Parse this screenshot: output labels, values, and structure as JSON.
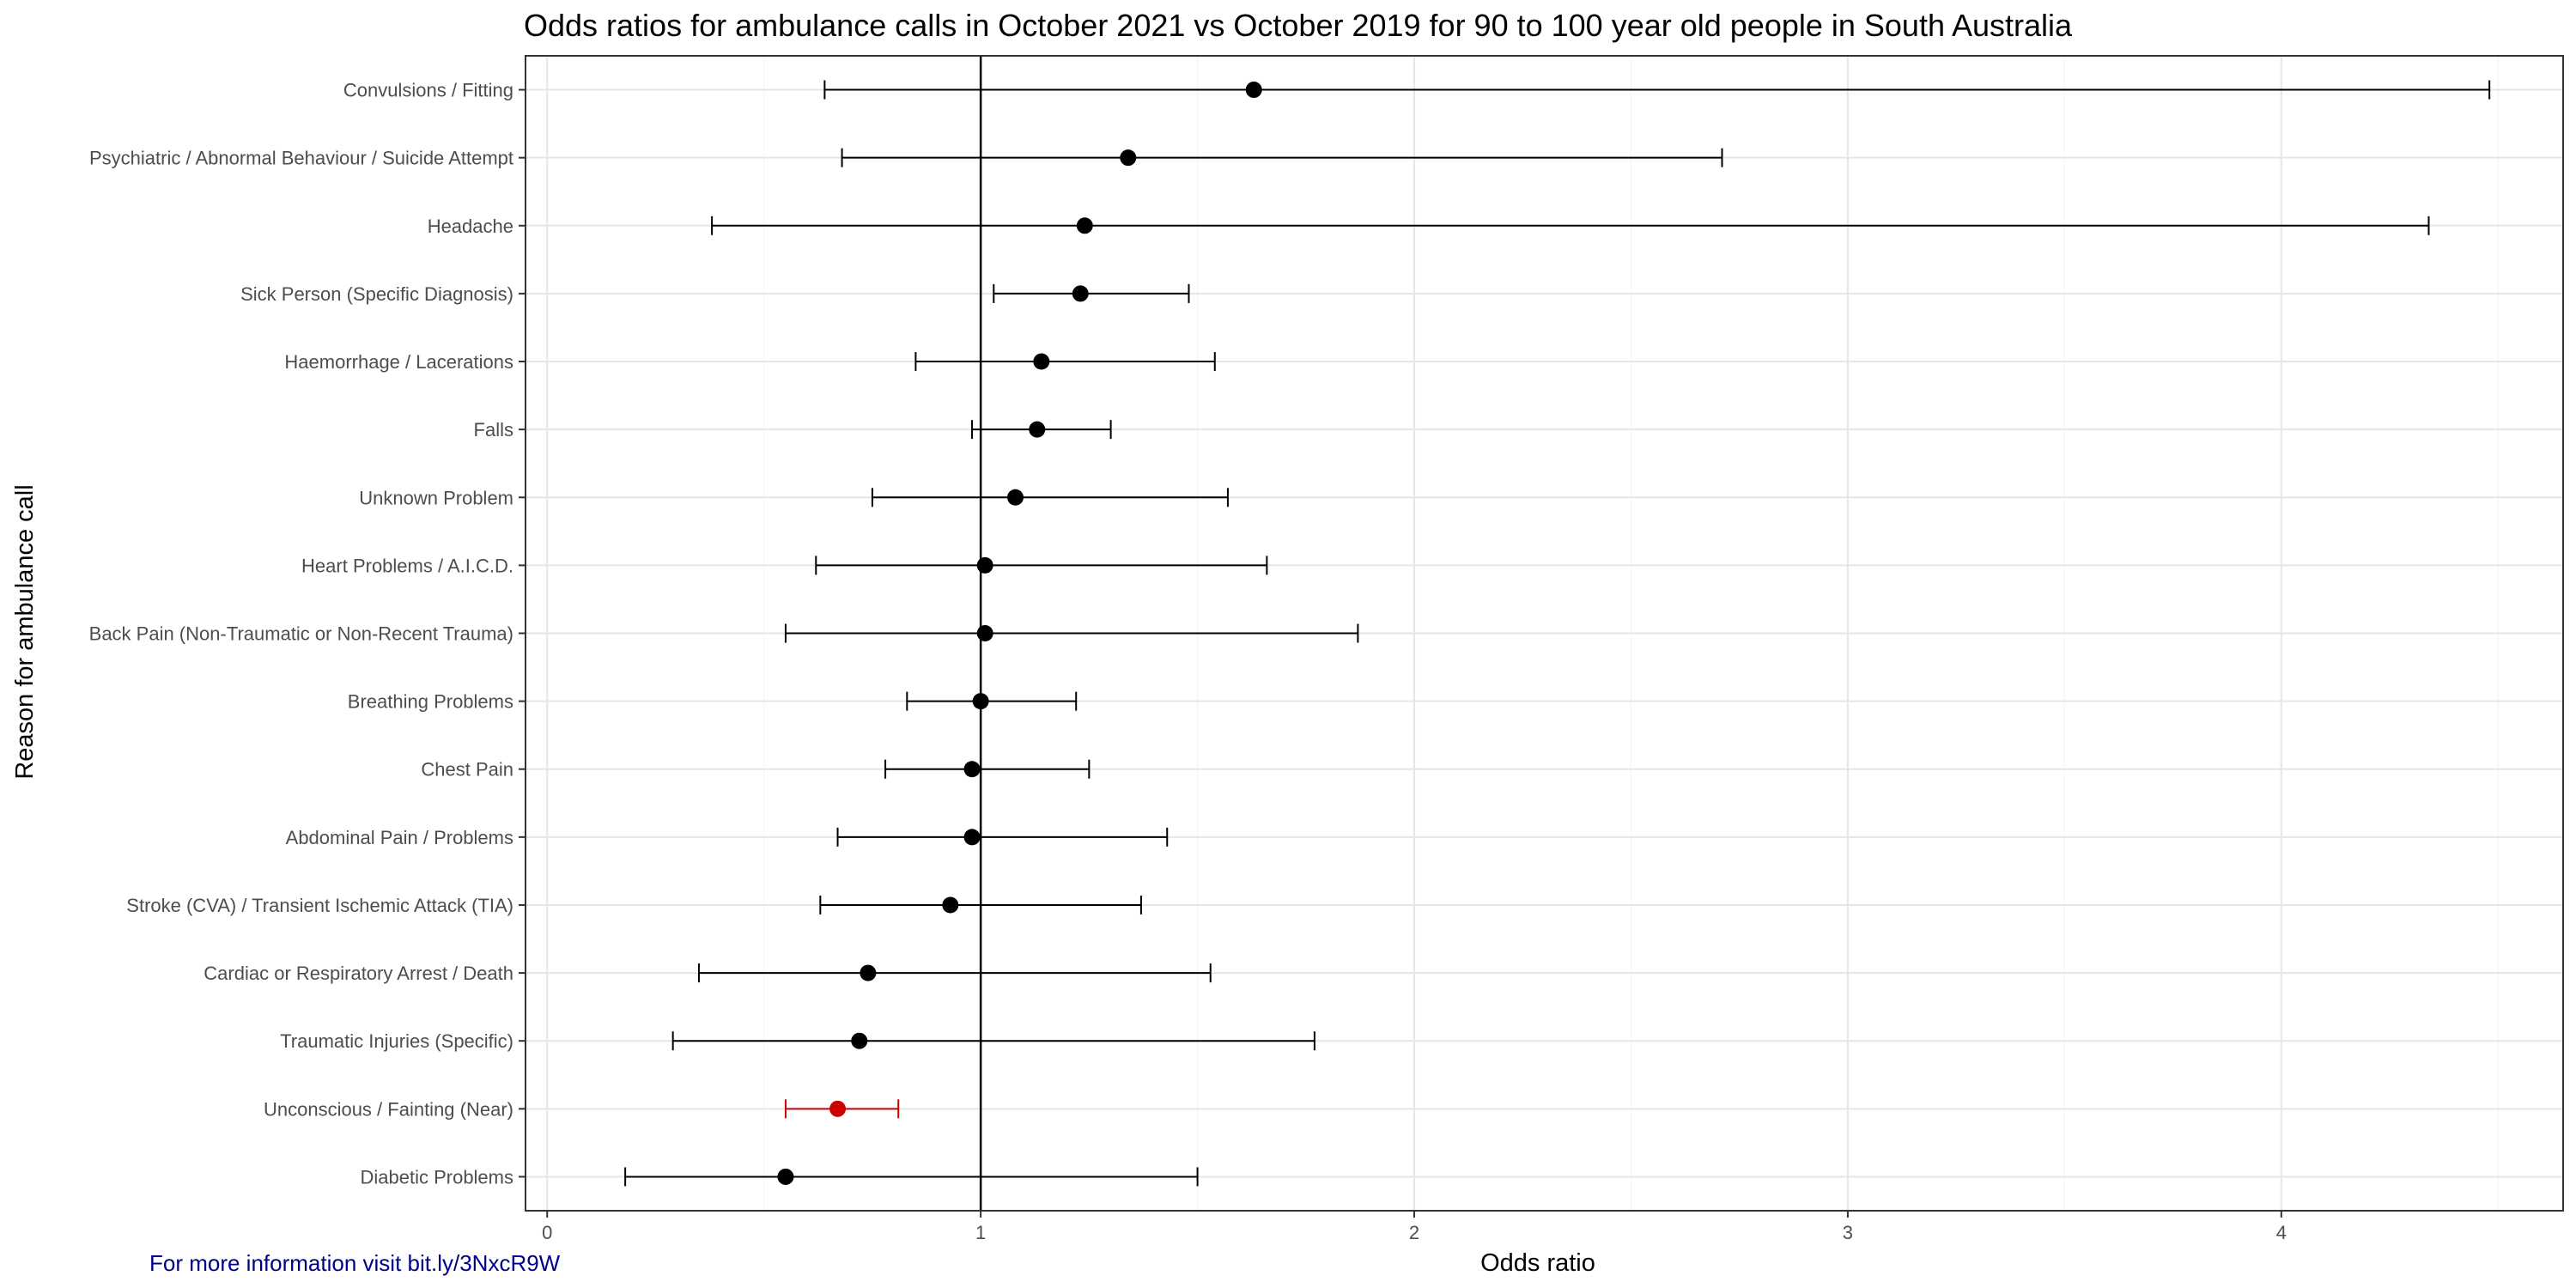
{
  "chart_data": {
    "type": "scatter",
    "title": "Odds ratios for ambulance calls in October 2021 vs October 2019 for 90 to 100 year old people in South Australia",
    "xlabel": "Odds ratio",
    "ylabel": "Reason for ambulance call",
    "xlim": [
      -0.05,
      4.65
    ],
    "x_ticks": [
      0,
      1,
      2,
      3,
      4
    ],
    "reference_line": 1,
    "grid": true,
    "point_color_default": "#000000",
    "point_color_highlight": "#cc0000",
    "points": [
      {
        "category": "Convulsions / Fitting",
        "estimate": 1.63,
        "lower": 0.64,
        "upper": 4.48,
        "highlight": false
      },
      {
        "category": "Psychiatric / Abnormal Behaviour / Suicide Attempt",
        "estimate": 1.34,
        "lower": 0.68,
        "upper": 2.71,
        "highlight": false
      },
      {
        "category": "Headache",
        "estimate": 1.24,
        "lower": 0.38,
        "upper": 4.34,
        "highlight": false
      },
      {
        "category": "Sick Person (Specific Diagnosis)",
        "estimate": 1.23,
        "lower": 1.03,
        "upper": 1.48,
        "highlight": false
      },
      {
        "category": "Haemorrhage / Lacerations",
        "estimate": 1.14,
        "lower": 0.85,
        "upper": 1.54,
        "highlight": false
      },
      {
        "category": "Falls",
        "estimate": 1.13,
        "lower": 0.98,
        "upper": 1.3,
        "highlight": false
      },
      {
        "category": "Unknown Problem",
        "estimate": 1.08,
        "lower": 0.75,
        "upper": 1.57,
        "highlight": false
      },
      {
        "category": "Heart Problems / A.I.C.D.",
        "estimate": 1.01,
        "lower": 0.62,
        "upper": 1.66,
        "highlight": false
      },
      {
        "category": "Back Pain (Non-Traumatic or Non-Recent Trauma)",
        "estimate": 1.01,
        "lower": 0.55,
        "upper": 1.87,
        "highlight": false
      },
      {
        "category": "Breathing Problems",
        "estimate": 1.0,
        "lower": 0.83,
        "upper": 1.22,
        "highlight": false
      },
      {
        "category": "Chest Pain",
        "estimate": 0.98,
        "lower": 0.78,
        "upper": 1.25,
        "highlight": false
      },
      {
        "category": "Abdominal Pain / Problems",
        "estimate": 0.98,
        "lower": 0.67,
        "upper": 1.43,
        "highlight": false
      },
      {
        "category": "Stroke (CVA) / Transient Ischemic Attack (TIA)",
        "estimate": 0.93,
        "lower": 0.63,
        "upper": 1.37,
        "highlight": false
      },
      {
        "category": "Cardiac or Respiratory Arrest / Death",
        "estimate": 0.74,
        "lower": 0.35,
        "upper": 1.53,
        "highlight": false
      },
      {
        "category": "Traumatic Injuries (Specific)",
        "estimate": 0.72,
        "lower": 0.29,
        "upper": 1.77,
        "highlight": false
      },
      {
        "category": "Unconscious / Fainting (Near)",
        "estimate": 0.67,
        "lower": 0.55,
        "upper": 0.81,
        "highlight": true
      },
      {
        "category": "Diabetic Problems",
        "estimate": 0.55,
        "lower": 0.18,
        "upper": 1.5,
        "highlight": false
      }
    ]
  },
  "caption": "For more information visit bit.ly/3NxcR9W"
}
